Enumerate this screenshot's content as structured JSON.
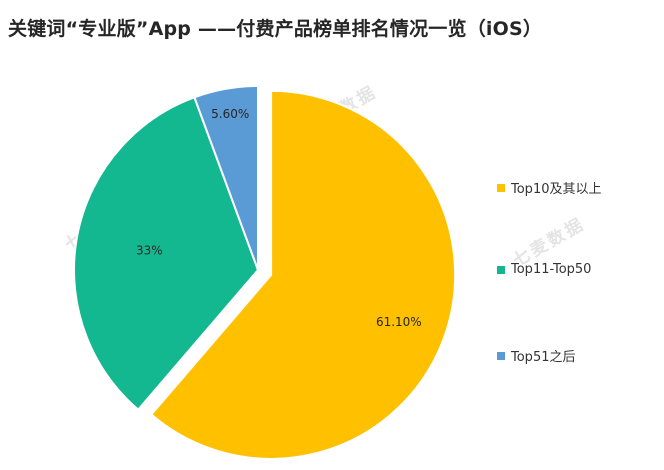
{
  "chart_data": {
    "type": "pie",
    "title": "关键词“专业版”App ——付费产品榜单排名情况一览（iOS）",
    "categories": [
      "Top10及其以上",
      "Top11-Top50",
      "Top51之后"
    ],
    "values": [
      61.1,
      33,
      5.6
    ],
    "data_labels": [
      "61.10%",
      "33%",
      "5.60%"
    ],
    "colors": [
      "#FFC000",
      "#14B890",
      "#5B9BD5"
    ],
    "legend_position": "right",
    "exploded_slice": "Top10及其以上"
  },
  "watermark": {
    "text": "七麦数据"
  }
}
